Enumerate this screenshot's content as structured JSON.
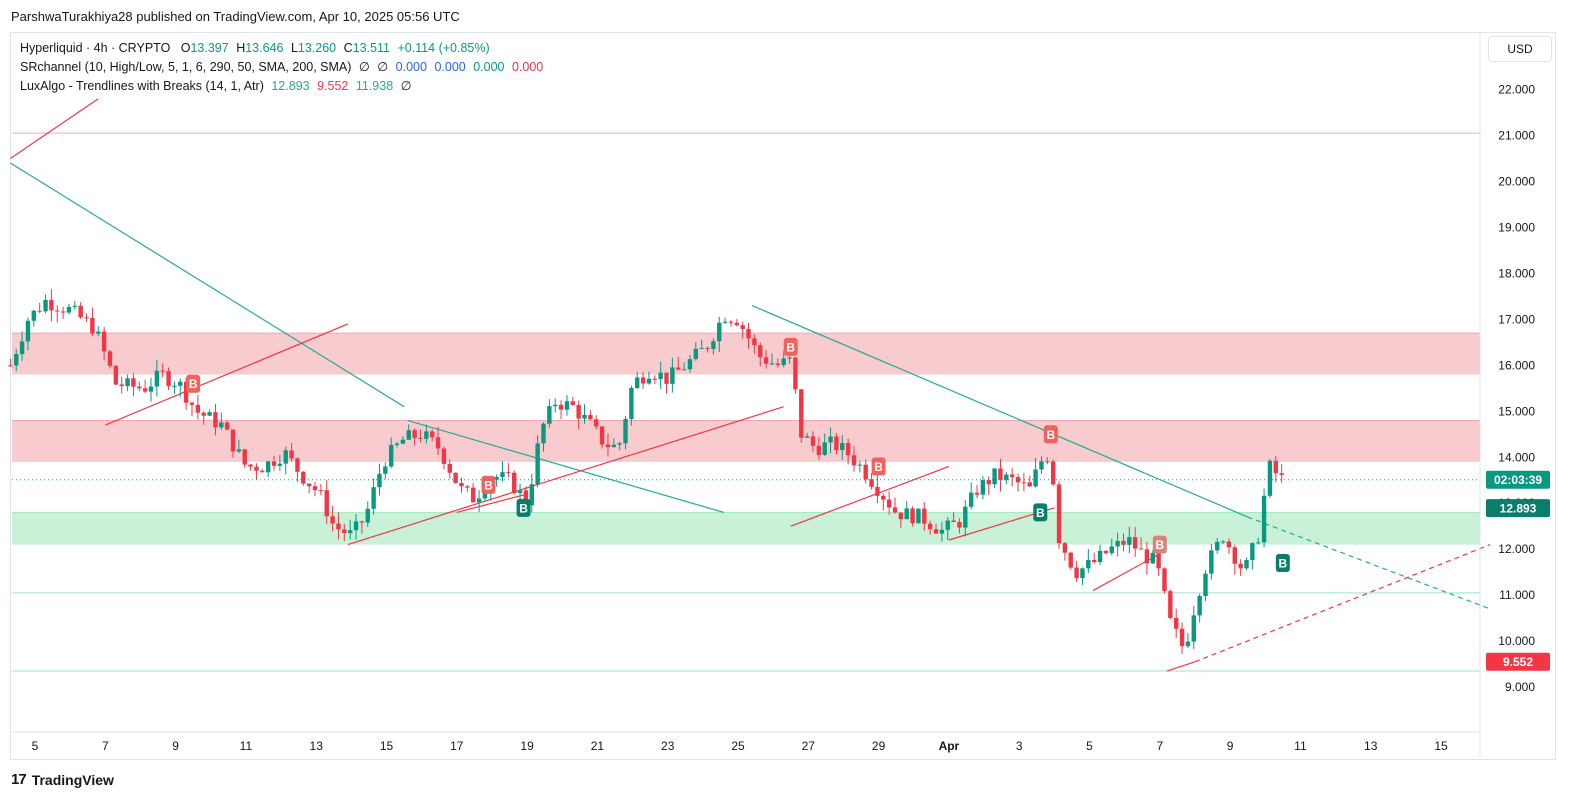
{
  "publisher": "ParshwaTurakhiya28 published on TradingView.com, Apr 10, 2025 05:56 UTC",
  "currency": "USD",
  "branding": "TradingView",
  "legend": {
    "symbol": {
      "name": "Hyperliquid · 4h · CRYPTO",
      "open_label": "O",
      "open": "13.397",
      "high_label": "H",
      "high": "13.646",
      "low_label": "L",
      "low": "13.260",
      "close_label": "C",
      "close": "13.511",
      "change": "+0.114 (+0.85%)"
    },
    "srchannel": {
      "name": "SRchannel (10, High/Low, 5, 1, 6, 290, 50, SMA, 200, SMA)",
      "empty1": "∅",
      "empty2": "∅",
      "v1": "0.000",
      "v2": "0.000",
      "v3": "0.000",
      "v4": "0.000"
    },
    "luxalgo": {
      "name": "LuxAlgo - Trendlines with Breaks (14, 1, Atr)",
      "v1": "12.893",
      "v2": "9.552",
      "v3": "11.938",
      "empty": "∅"
    }
  },
  "colors": {
    "up": "#089981",
    "down": "#f23645",
    "resistance_zone": "#f7c5c9",
    "support_zone": "#c2f0d4",
    "trend_down": "#22ab94",
    "trend_up": "#f23645"
  },
  "chart_data": {
    "type": "candlestick",
    "title": "Hyperliquid · 4h · CRYPTO",
    "ylim": [
      8.2,
      22.8
    ],
    "y_ticks": [
      22,
      21,
      20,
      19,
      18,
      17,
      16,
      15,
      14,
      13,
      12,
      11,
      10,
      9
    ],
    "y_tick_labels": [
      "22.000",
      "21.000",
      "20.000",
      "19.000",
      "18.000",
      "17.000",
      "16.000",
      "15.000",
      "14.000",
      "13.000",
      "12.000",
      "11.000",
      "10.000",
      "9.000"
    ],
    "x_tick_labels": [
      "5",
      "7",
      "9",
      "11",
      "13",
      "15",
      "17",
      "19",
      "21",
      "23",
      "25",
      "27",
      "29",
      "Apr",
      "3",
      "5",
      "7",
      "9",
      "11",
      "13",
      "15"
    ],
    "x_tick_days": [
      0,
      2,
      4,
      6,
      8,
      10,
      12,
      14,
      16,
      18,
      20,
      22,
      24,
      26,
      28,
      30,
      32,
      34,
      36,
      38,
      40
    ],
    "last_price_tag": "02:03:39",
    "last_price": 13.511,
    "upper_trend_tag": "12.893",
    "upper_trend_value": 12.893,
    "lower_trend_tag": "9.552",
    "lower_trend_value": 9.552,
    "horizontal_lines": [
      21.05,
      11.05,
      9.35
    ],
    "zones": [
      {
        "kind": "resistance",
        "top": 16.7,
        "bottom": 15.8
      },
      {
        "kind": "resistance",
        "top": 14.8,
        "bottom": 13.9
      },
      {
        "kind": "support",
        "top": 12.8,
        "bottom": 12.1
      }
    ],
    "day_anchors": [
      [
        -0.7,
        16.0
      ],
      [
        -0.2,
        17.0
      ],
      [
        0.3,
        17.4
      ],
      [
        1.0,
        17.2
      ],
      [
        1.7,
        16.8
      ],
      [
        2.3,
        15.6
      ],
      [
        3.1,
        15.5
      ],
      [
        3.6,
        15.8
      ],
      [
        4.1,
        15.6
      ],
      [
        4.6,
        15.0
      ],
      [
        5.3,
        14.7
      ],
      [
        6.0,
        13.8
      ],
      [
        6.5,
        13.8
      ],
      [
        7.1,
        14.1
      ],
      [
        7.6,
        13.6
      ],
      [
        8.1,
        13.2
      ],
      [
        8.5,
        12.5
      ],
      [
        9.0,
        12.3
      ],
      [
        9.4,
        12.7
      ],
      [
        9.9,
        13.9
      ],
      [
        10.5,
        14.4
      ],
      [
        11.0,
        14.5
      ],
      [
        11.5,
        14.2
      ],
      [
        12.1,
        13.3
      ],
      [
        12.5,
        13.1
      ],
      [
        13.0,
        13.6
      ],
      [
        13.5,
        13.5
      ],
      [
        14.0,
        13.0
      ],
      [
        14.4,
        14.6
      ],
      [
        14.8,
        15.2
      ],
      [
        15.3,
        15.1
      ],
      [
        15.8,
        14.7
      ],
      [
        16.2,
        14.3
      ],
      [
        16.6,
        14.2
      ],
      [
        17.0,
        15.6
      ],
      [
        17.5,
        15.9
      ],
      [
        18.0,
        15.7
      ],
      [
        18.5,
        16.0
      ],
      [
        19.1,
        16.4
      ],
      [
        19.6,
        17.1
      ],
      [
        20.0,
        17.0
      ],
      [
        20.6,
        16.2
      ],
      [
        21.1,
        16.0
      ],
      [
        21.5,
        16.1
      ],
      [
        21.8,
        14.5
      ],
      [
        22.2,
        14.2
      ],
      [
        22.7,
        14.3
      ],
      [
        23.1,
        14.1
      ],
      [
        23.6,
        13.7
      ],
      [
        24.1,
        13.2
      ],
      [
        24.5,
        12.8
      ],
      [
        25.2,
        12.7
      ],
      [
        25.8,
        12.4
      ],
      [
        26.3,
        12.6
      ],
      [
        26.8,
        13.3
      ],
      [
        27.3,
        13.6
      ],
      [
        27.8,
        13.5
      ],
      [
        28.3,
        13.3
      ],
      [
        28.6,
        13.9
      ],
      [
        28.9,
        14.1
      ],
      [
        29.1,
        12.3
      ],
      [
        29.6,
        11.5
      ],
      [
        30.1,
        11.7
      ],
      [
        30.6,
        12.0
      ],
      [
        31.1,
        12.2
      ],
      [
        31.5,
        11.9
      ],
      [
        31.9,
        11.7
      ],
      [
        32.3,
        10.4
      ],
      [
        32.7,
        9.8
      ],
      [
        33.0,
        10.8
      ],
      [
        33.3,
        11.6
      ],
      [
        33.8,
        12.3
      ],
      [
        34.1,
        11.9
      ],
      [
        34.4,
        11.5
      ],
      [
        34.8,
        12.3
      ],
      [
        35.1,
        13.8
      ],
      [
        35.5,
        13.5
      ]
    ],
    "trendlines": [
      {
        "kind": "down",
        "style": "solid",
        "from": [
          -0.7,
          20.4
        ],
        "to": [
          10.5,
          15.1
        ]
      },
      {
        "kind": "up",
        "style": "solid",
        "from": [
          -0.7,
          20.5
        ],
        "to": [
          1.8,
          21.8
        ]
      },
      {
        "kind": "up",
        "style": "solid",
        "from": [
          2.0,
          14.7
        ],
        "to": [
          8.9,
          16.9
        ]
      },
      {
        "kind": "down",
        "style": "solid",
        "from": [
          10.6,
          14.8
        ],
        "to": [
          19.6,
          12.8
        ]
      },
      {
        "kind": "up",
        "style": "solid",
        "from": [
          8.9,
          12.1
        ],
        "to": [
          21.3,
          15.1
        ]
      },
      {
        "kind": "up",
        "style": "solid",
        "from": [
          12.0,
          12.8
        ],
        "to": [
          14.0,
          13.2
        ]
      },
      {
        "kind": "down",
        "style": "solid",
        "from": [
          20.4,
          17.3
        ],
        "to": [
          34.5,
          12.7
        ]
      },
      {
        "kind": "down",
        "style": "dashed",
        "from": [
          34.5,
          12.7
        ],
        "to": [
          41.4,
          10.7
        ]
      },
      {
        "kind": "up",
        "style": "solid",
        "from": [
          21.5,
          12.5
        ],
        "to": [
          26.0,
          13.8
        ]
      },
      {
        "kind": "up",
        "style": "solid",
        "from": [
          26.0,
          12.2
        ],
        "to": [
          29.0,
          12.9
        ]
      },
      {
        "kind": "up",
        "style": "solid",
        "from": [
          30.1,
          11.1
        ],
        "to": [
          32.0,
          11.9
        ]
      },
      {
        "kind": "up",
        "style": "solid",
        "from": [
          32.2,
          9.35
        ],
        "to": [
          33.0,
          9.55
        ]
      },
      {
        "kind": "up",
        "style": "dashed",
        "from": [
          33.0,
          9.55
        ],
        "to": [
          41.4,
          12.1
        ]
      }
    ],
    "break_labels": [
      {
        "text": "B",
        "kind": "bear",
        "day": 4.5,
        "price": 15.6
      },
      {
        "text": "B",
        "kind": "bear",
        "day": 12.9,
        "price": 13.4
      },
      {
        "text": "B",
        "kind": "bull",
        "day": 13.9,
        "price": 12.9
      },
      {
        "text": "B",
        "kind": "bear",
        "day": 21.5,
        "price": 16.4
      },
      {
        "text": "B",
        "kind": "bear",
        "day": 24.0,
        "price": 13.8
      },
      {
        "text": "B",
        "kind": "bull",
        "day": 28.6,
        "price": 12.8
      },
      {
        "text": "B",
        "kind": "bear",
        "day": 28.9,
        "price": 14.5
      },
      {
        "text": "B",
        "kind": "bear-faded",
        "day": 32.0,
        "price": 12.1
      },
      {
        "text": "B",
        "kind": "bull",
        "day": 35.5,
        "price": 11.7
      }
    ]
  }
}
